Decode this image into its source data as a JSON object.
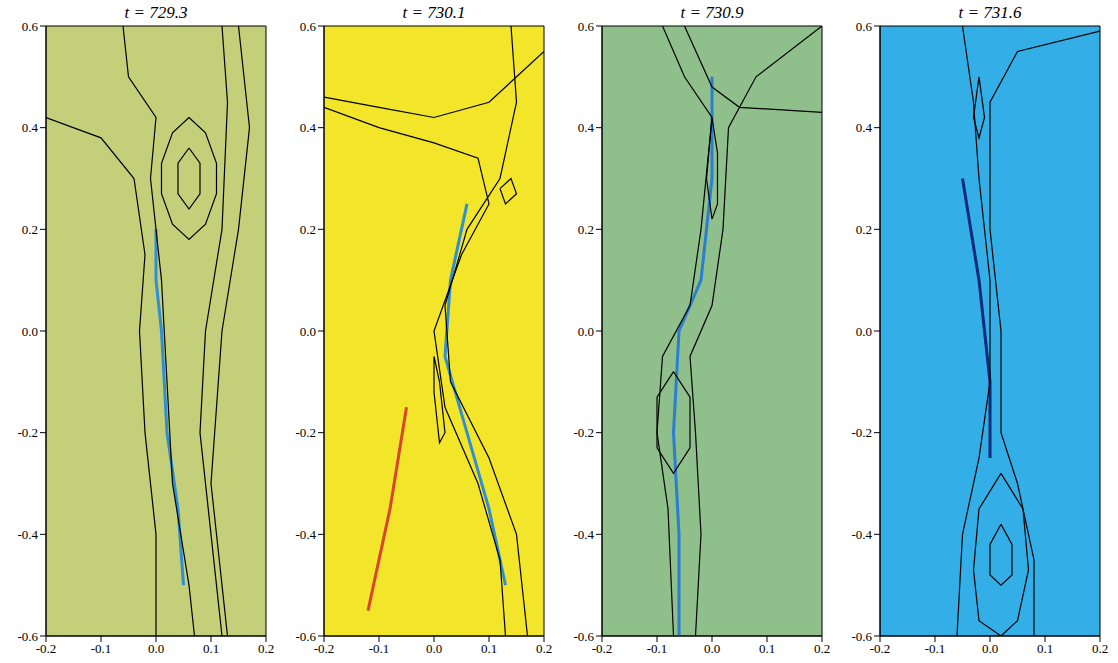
{
  "chart_data": [
    {
      "type": "line",
      "title": "t = 729.3",
      "color": "#c4cf7a",
      "xlim": [
        -0.2,
        0.2
      ],
      "ylim": [
        -0.6,
        0.6
      ],
      "xticks": [
        -0.2,
        -0.1,
        {
          "value": 0,
          "label": "0.0"
        },
        0.1,
        0.2
      ],
      "yticks": [
        -0.6,
        -0.4,
        -0.2,
        {
          "value": 0,
          "label": "0.0"
        },
        0.2,
        0.4,
        0.6
      ],
      "series": [
        {
          "color": "#2f8fd0",
          "x": [
            0.0,
            0.0,
            0.01,
            0.02,
            0.04,
            0.05
          ],
          "values": [
            0.2,
            0.1,
            0.0,
            -0.2,
            -0.35,
            -0.5
          ]
        },
        {
          "color": "#000000",
          "x": [
            0.06,
            0.09,
            0.11,
            0.11,
            0.09,
            0.06,
            0.03,
            0.01,
            0.01,
            0.03,
            0.06
          ],
          "values": [
            0.42,
            0.39,
            0.33,
            0.27,
            0.21,
            0.18,
            0.21,
            0.27,
            0.33,
            0.39,
            0.42
          ]
        },
        {
          "color": "#000000",
          "x": [
            0.06,
            0.08,
            0.08,
            0.06,
            0.04,
            0.04,
            0.06
          ],
          "values": [
            0.36,
            0.33,
            0.27,
            0.24,
            0.27,
            0.33,
            0.36
          ]
        },
        {
          "color": "#000000",
          "x": [
            -0.2,
            -0.1,
            -0.04,
            -0.02,
            -0.03,
            -0.02,
            0.0,
            0.0
          ],
          "values": [
            0.42,
            0.38,
            0.3,
            0.15,
            0.0,
            -0.2,
            -0.4,
            -0.6
          ]
        },
        {
          "color": "#000000",
          "x": [
            -0.06,
            -0.05,
            0.0,
            -0.01,
            0.01,
            0.02,
            0.03,
            0.06,
            0.07
          ],
          "values": [
            0.6,
            0.5,
            0.42,
            0.3,
            0.1,
            -0.1,
            -0.3,
            -0.5,
            -0.6
          ]
        },
        {
          "color": "#000000",
          "x": [
            0.12,
            0.13,
            0.12,
            0.09,
            0.08,
            0.1,
            0.12
          ],
          "values": [
            0.6,
            0.45,
            0.2,
            0.0,
            -0.2,
            -0.4,
            -0.6
          ]
        },
        {
          "color": "#000000",
          "x": [
            0.15,
            0.17,
            0.15,
            0.12,
            0.1,
            0.13
          ],
          "values": [
            0.6,
            0.4,
            0.2,
            0.0,
            -0.3,
            -0.6
          ]
        }
      ]
    },
    {
      "type": "line",
      "title": "t = 730.1",
      "color": "#f2e52a",
      "xlim": [
        -0.2,
        0.2
      ],
      "ylim": [
        -0.6,
        0.6
      ],
      "xticks": [
        -0.2,
        -0.1,
        {
          "value": 0,
          "label": "0.0"
        },
        0.1,
        0.2
      ],
      "yticks": [
        -0.6,
        -0.4,
        -0.2,
        {
          "value": 0,
          "label": "0.0"
        },
        0.2,
        0.4,
        0.6
      ],
      "series": [
        {
          "color": "#2f8fd0",
          "x": [
            0.06,
            0.03,
            0.02,
            0.06,
            0.1,
            0.13
          ],
          "values": [
            0.25,
            0.1,
            -0.05,
            -0.2,
            -0.35,
            -0.5
          ]
        },
        {
          "color": "#d9452b",
          "x": [
            -0.05,
            -0.08,
            -0.12
          ],
          "values": [
            -0.15,
            -0.35,
            -0.55
          ]
        },
        {
          "color": "#000000",
          "x": [
            -0.2,
            -0.1,
            0.0,
            0.1,
            0.2
          ],
          "values": [
            0.46,
            0.44,
            0.42,
            0.45,
            0.55
          ]
        },
        {
          "color": "#000000",
          "x": [
            -0.2,
            -0.1,
            0.0,
            0.08,
            0.1,
            0.05,
            0.0,
            0.02,
            0.08,
            0.12,
            0.13
          ],
          "values": [
            0.44,
            0.4,
            0.37,
            0.34,
            0.25,
            0.15,
            0.0,
            -0.15,
            -0.3,
            -0.45,
            -0.6
          ]
        },
        {
          "color": "#000000",
          "x": [
            0.14,
            0.15,
            0.12,
            0.06,
            0.02,
            0.03,
            0.1,
            0.15,
            0.17
          ],
          "values": [
            0.6,
            0.45,
            0.3,
            0.2,
            0.05,
            -0.1,
            -0.25,
            -0.4,
            -0.6
          ]
        },
        {
          "color": "#000000",
          "x": [
            0.12,
            0.14,
            0.15,
            0.13,
            0.12
          ],
          "values": [
            0.28,
            0.3,
            0.27,
            0.25,
            0.28
          ]
        },
        {
          "color": "#000000",
          "x": [
            0.0,
            0.01,
            0.02,
            0.01,
            0.0,
            0.0
          ],
          "values": [
            -0.05,
            -0.1,
            -0.2,
            -0.22,
            -0.12,
            -0.05
          ]
        }
      ]
    },
    {
      "type": "line",
      "title": "t = 730.9",
      "color": "#8fbf8a",
      "xlim": [
        -0.2,
        0.2
      ],
      "ylim": [
        -0.6,
        0.6
      ],
      "xticks": [
        -0.2,
        -0.1,
        {
          "value": 0,
          "label": "0.0"
        },
        0.1,
        0.2
      ],
      "yticks": [
        -0.6,
        -0.4,
        -0.2,
        {
          "value": 0,
          "label": "0.0"
        },
        0.2,
        0.4,
        0.6
      ],
      "series": [
        {
          "color": "#2a7fd0",
          "x": [
            0.0,
            0.0,
            -0.02,
            -0.06,
            -0.07,
            -0.06,
            -0.06
          ],
          "values": [
            0.5,
            0.3,
            0.1,
            0.0,
            -0.2,
            -0.4,
            -0.6
          ]
        },
        {
          "color": "#000000",
          "x": [
            -0.09,
            -0.05,
            0.0,
            -0.02,
            -0.04,
            -0.09,
            -0.1,
            -0.08,
            -0.07
          ],
          "values": [
            0.6,
            0.5,
            0.42,
            0.2,
            0.05,
            -0.05,
            -0.2,
            -0.35,
            -0.6
          ]
        },
        {
          "color": "#000000",
          "x": [
            -0.05,
            0.0,
            0.05,
            0.2
          ],
          "values": [
            0.6,
            0.48,
            0.44,
            0.43
          ]
        },
        {
          "color": "#000000",
          "x": [
            0.2,
            0.08,
            0.03,
            0.02,
            0.0,
            -0.04,
            -0.03,
            -0.02,
            -0.03
          ],
          "values": [
            0.6,
            0.5,
            0.4,
            0.2,
            0.05,
            -0.05,
            -0.2,
            -0.4,
            -0.6
          ]
        },
        {
          "color": "#000000",
          "x": [
            0.0,
            0.01,
            0.01,
            0.0,
            -0.01,
            0.0
          ],
          "values": [
            0.42,
            0.35,
            0.25,
            0.22,
            0.3,
            0.42
          ]
        },
        {
          "color": "#000000",
          "x": [
            -0.07,
            -0.04,
            -0.04,
            -0.07,
            -0.1,
            -0.1,
            -0.07
          ],
          "values": [
            -0.08,
            -0.13,
            -0.23,
            -0.28,
            -0.23,
            -0.13,
            -0.08
          ]
        }
      ]
    },
    {
      "type": "line",
      "title": "t = 731.6",
      "color": "#33aee6",
      "xlim": [
        -0.2,
        0.2
      ],
      "ylim": [
        -0.6,
        0.6
      ],
      "xticks": [
        -0.2,
        -0.1,
        {
          "value": 0,
          "label": "0.0"
        },
        0.1,
        0.2
      ],
      "yticks": [
        -0.6,
        -0.4,
        -0.2,
        {
          "value": 0,
          "label": "0.0"
        },
        0.2,
        0.4,
        0.6
      ],
      "series": [
        {
          "color": "#0b2a7a",
          "x": [
            -0.05,
            -0.02,
            0.0,
            0.0
          ],
          "values": [
            0.3,
            0.1,
            -0.1,
            -0.25
          ]
        },
        {
          "color": "#000000",
          "x": [
            -0.05,
            -0.03,
            -0.02,
            0.0,
            0.0,
            -0.02,
            -0.05,
            -0.06
          ],
          "values": [
            0.6,
            0.45,
            0.3,
            0.1,
            -0.1,
            -0.25,
            -0.4,
            -0.6
          ]
        },
        {
          "color": "#000000",
          "x": [
            0.2,
            0.05,
            0.0,
            0.0,
            0.02,
            0.02,
            0.05,
            0.08,
            0.08
          ],
          "values": [
            0.59,
            0.55,
            0.45,
            0.2,
            0.0,
            -0.2,
            -0.3,
            -0.45,
            -0.6
          ]
        },
        {
          "color": "#000000",
          "x": [
            -0.02,
            -0.01,
            -0.02,
            -0.03,
            -0.02
          ],
          "values": [
            0.5,
            0.42,
            0.38,
            0.42,
            0.5
          ]
        },
        {
          "color": "#000000",
          "x": [
            0.02,
            0.06,
            0.07,
            0.05,
            0.02,
            -0.02,
            -0.03,
            -0.02,
            0.02
          ],
          "values": [
            -0.28,
            -0.35,
            -0.47,
            -0.57,
            -0.6,
            -0.57,
            -0.47,
            -0.35,
            -0.28
          ]
        },
        {
          "color": "#000000",
          "x": [
            0.02,
            0.04,
            0.04,
            0.02,
            0.0,
            0.0,
            0.02
          ],
          "values": [
            -0.38,
            -0.42,
            -0.48,
            -0.5,
            -0.48,
            -0.42,
            -0.38
          ]
        }
      ]
    }
  ]
}
